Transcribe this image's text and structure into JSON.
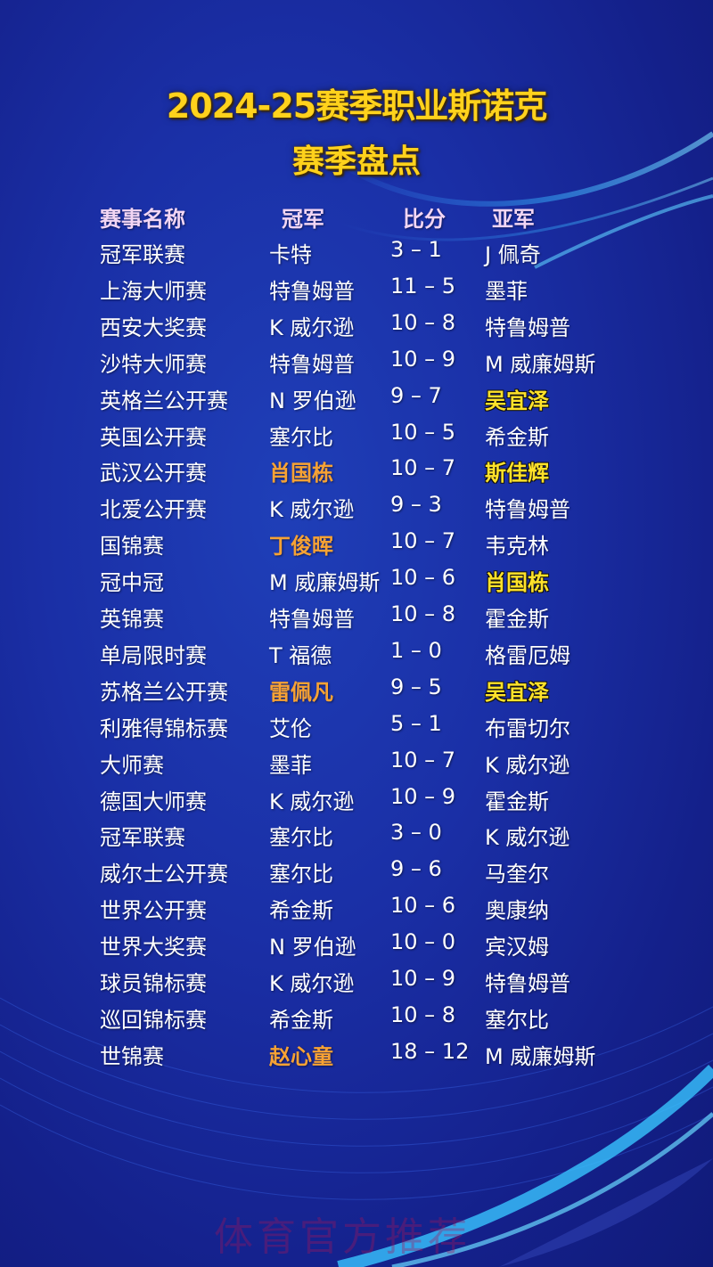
{
  "title_line1": "2024-25赛季职业斯诺克",
  "title_line2": "赛季盘点",
  "columns": [
    "赛事名称",
    "冠军",
    "比分",
    "亚军"
  ],
  "colors": {
    "title": "#ffd21c",
    "champion_highlight": "#f7a234",
    "runner_up_highlight": "#ffe22a",
    "background": "#1a2fa6"
  },
  "rows": [
    {
      "event": "冠军联赛",
      "champion": "卡特",
      "score": "3 – 1",
      "runner_up": "J 佩奇"
    },
    {
      "event": "上海大师赛",
      "champion": "特鲁姆普",
      "score": "11 – 5",
      "runner_up": "墨菲"
    },
    {
      "event": "西安大奖赛",
      "champion": "K 威尔逊",
      "score": "10 – 8",
      "runner_up": "特鲁姆普"
    },
    {
      "event": "沙特大师赛",
      "champion": "特鲁姆普",
      "score": "10 – 9",
      "runner_up": "M 威廉姆斯"
    },
    {
      "event": "英格兰公开赛",
      "champion": "N 罗伯逊",
      "score": "9 – 7",
      "runner_up": "吴宜泽",
      "runner_up_highlight": true
    },
    {
      "event": "英国公开赛",
      "champion": "塞尔比",
      "score": "10 – 5",
      "runner_up": "希金斯"
    },
    {
      "event": "武汉公开赛",
      "champion": "肖国栋",
      "score": "10 – 7",
      "runner_up": "斯佳辉",
      "champion_highlight": true,
      "runner_up_highlight": true
    },
    {
      "event": "北爱公开赛",
      "champion": "K 威尔逊",
      "score": "9 – 3",
      "runner_up": "特鲁姆普"
    },
    {
      "event": "国锦赛",
      "champion": "丁俊晖",
      "score": "10 – 7",
      "runner_up": "韦克林",
      "champion_highlight": true
    },
    {
      "event": "冠中冠",
      "champion": "M 威廉姆斯",
      "score": "10 – 6",
      "runner_up": "肖国栋",
      "runner_up_highlight": true
    },
    {
      "event": "英锦赛",
      "champion": "特鲁姆普",
      "score": "10 – 8",
      "runner_up": "霍金斯"
    },
    {
      "event": "单局限时赛",
      "champion": "T 福德",
      "score": "1 – 0",
      "runner_up": "格雷厄姆"
    },
    {
      "event": "苏格兰公开赛",
      "champion": "雷佩凡",
      "score": "9 – 5",
      "runner_up": "吴宜泽",
      "champion_highlight": true,
      "runner_up_highlight": true
    },
    {
      "event": "利雅得锦标赛",
      "champion": "艾伦",
      "score": "5 – 1",
      "runner_up": "布雷切尔"
    },
    {
      "event": "大师赛",
      "champion": "墨菲",
      "score": "10 – 7",
      "runner_up": "K 威尔逊"
    },
    {
      "event": "德国大师赛",
      "champion": "K 威尔逊",
      "score": "10 – 9",
      "runner_up": "霍金斯"
    },
    {
      "event": "冠军联赛",
      "champion": "塞尔比",
      "score": "3 – 0",
      "runner_up": "K 威尔逊"
    },
    {
      "event": "威尔士公开赛",
      "champion": "塞尔比",
      "score": "9 – 6",
      "runner_up": "马奎尔"
    },
    {
      "event": "世界公开赛",
      "champion": "希金斯",
      "score": "10 – 6",
      "runner_up": "奥康纳"
    },
    {
      "event": "世界大奖赛",
      "champion": "N 罗伯逊",
      "score": "10 – 0",
      "runner_up": "宾汉姆"
    },
    {
      "event": "球员锦标赛",
      "champion": "K 威尔逊",
      "score": "10 – 9",
      "runner_up": "特鲁姆普"
    },
    {
      "event": "巡回锦标赛",
      "champion": "希金斯",
      "score": "10 – 8",
      "runner_up": "塞尔比"
    },
    {
      "event": "世锦赛",
      "champion": "赵心童",
      "score": "18 – 12",
      "runner_up": "M 威廉姆斯",
      "champion_highlight": true
    }
  ],
  "watermark": "体育官方推荐"
}
